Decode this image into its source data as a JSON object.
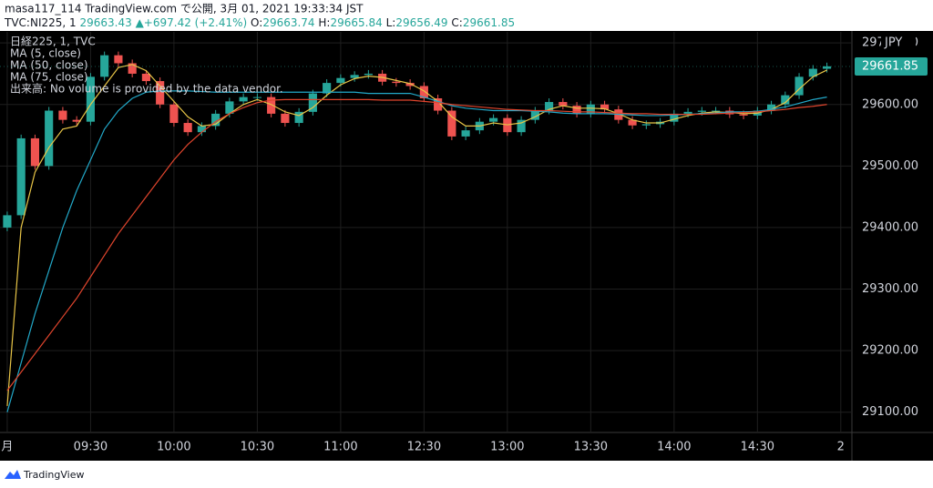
{
  "header": {
    "line1": "masa117_114 TradingView.com で公開, 3月 01, 2021 19:33:34 JST",
    "symbol": "TVC:NI225, 1",
    "price": "29663.43",
    "change": "▲+697.42 (+2.41%)",
    "o_label": "O:",
    "o": "29663.74",
    "h_label": "H:",
    "h": "29665.84",
    "l_label": "L:",
    "l": "29656.49",
    "c_label": "C:",
    "c": "29661.85"
  },
  "legend_header": "日経225, 1, TVC",
  "volume_note": "出来高: No volume is provided by the data vendor.",
  "currency": "JPY",
  "footer": "TradingView",
  "chart_data": {
    "type": "candlestick",
    "up_color": "#26a69a",
    "down_color": "#ef5350",
    "grid": true,
    "xlim": [
      -2.6,
      304
    ],
    "ylim": [
      29067,
      29718
    ],
    "xticks": [
      {
        "value": 0,
        "label": "月"
      },
      {
        "value": 30,
        "label": "09:30"
      },
      {
        "value": 60,
        "label": "10:00"
      },
      {
        "value": 90,
        "label": "10:30"
      },
      {
        "value": 120,
        "label": "11:00"
      },
      {
        "value": 150,
        "label": "12:30"
      },
      {
        "value": 180,
        "label": "13:00"
      },
      {
        "value": 210,
        "label": "13:30"
      },
      {
        "value": 240,
        "label": "14:00"
      },
      {
        "value": 270,
        "label": "14:30"
      },
      {
        "value": 300,
        "label": "2"
      }
    ],
    "yticks": [
      {
        "value": 29100,
        "label": "29100.00"
      },
      {
        "value": 29200,
        "label": "29200.00"
      },
      {
        "value": 29300,
        "label": "29300.00"
      },
      {
        "value": 29400,
        "label": "29400.00"
      },
      {
        "value": 29500,
        "label": "29500.00"
      },
      {
        "value": 29600,
        "label": "29600.00"
      },
      {
        "value": 29700,
        "label": "29700.00"
      }
    ],
    "last_price": 29661.85,
    "x": [
      0,
      5,
      10,
      15,
      20,
      25,
      30,
      35,
      40,
      45,
      50,
      55,
      60,
      65,
      70,
      75,
      80,
      85,
      90,
      95,
      100,
      105,
      110,
      115,
      120,
      125,
      130,
      135,
      140,
      145,
      150,
      155,
      160,
      165,
      170,
      175,
      180,
      185,
      190,
      195,
      200,
      205,
      210,
      215,
      220,
      225,
      230,
      235,
      240,
      245,
      250,
      255,
      260,
      265,
      270,
      275,
      280,
      285,
      290,
      295
    ],
    "open": [
      29400,
      29420,
      29545,
      29500,
      29590,
      29575,
      29572,
      29645,
      29680,
      29667,
      29650,
      29638,
      29600,
      29570,
      29555,
      29565,
      29585,
      29605,
      29612,
      29612,
      29585,
      29570,
      29588,
      29618,
      29635,
      29643,
      29648,
      29650,
      29637,
      29635,
      29630,
      29610,
      29590,
      29548,
      29558,
      29572,
      29578,
      29555,
      29575,
      29590,
      29604,
      29598,
      29585,
      29600,
      29592,
      29575,
      29566,
      29568,
      29572,
      29585,
      29588,
      29590,
      29590,
      29584,
      29582,
      29590,
      29600,
      29615,
      29645,
      29658
    ],
    "high": [
      29426,
      29551,
      29551,
      29596,
      29596,
      29581,
      29651,
      29686,
      29686,
      29673,
      29656,
      29644,
      29606,
      29576,
      29571,
      29591,
      29611,
      29618,
      29618,
      29618,
      29591,
      29594,
      29624,
      29641,
      29649,
      29654,
      29656,
      29656,
      29643,
      29641,
      29636,
      29616,
      29596,
      29564,
      29578,
      29584,
      29584,
      29581,
      29596,
      29610,
      29610,
      29604,
      29606,
      29606,
      29598,
      29581,
      29574,
      29578,
      29591,
      29594,
      29596,
      29596,
      29596,
      29590,
      29596,
      29606,
      29621,
      29651,
      29664,
      29668
    ],
    "low": [
      29394,
      29414,
      29494,
      29494,
      29569,
      29566,
      29566,
      29639,
      29661,
      29644,
      29632,
      29594,
      29564,
      29549,
      29549,
      29559,
      29579,
      29599,
      29606,
      29579,
      29564,
      29564,
      29582,
      29612,
      29629,
      29637,
      29642,
      29631,
      29629,
      29624,
      29604,
      29584,
      29542,
      29542,
      29552,
      29566,
      29549,
      29549,
      29569,
      29584,
      29592,
      29579,
      29579,
      29586,
      29569,
      29560,
      29560,
      29562,
      29566,
      29579,
      29582,
      29584,
      29578,
      29576,
      29576,
      29584,
      29594,
      29609,
      29639,
      29652
    ],
    "close": [
      29420,
      29545,
      29500,
      29590,
      29575,
      29572,
      29645,
      29680,
      29667,
      29650,
      29638,
      29600,
      29570,
      29555,
      29565,
      29585,
      29605,
      29612,
      29612,
      29585,
      29570,
      29588,
      29618,
      29635,
      29643,
      29648,
      29650,
      29637,
      29635,
      29630,
      29610,
      29590,
      29548,
      29558,
      29572,
      29578,
      29555,
      29575,
      29590,
      29604,
      29598,
      29585,
      29600,
      29592,
      29575,
      29566,
      29568,
      29572,
      29585,
      29588,
      29590,
      29590,
      29584,
      29582,
      29590,
      29600,
      29615,
      29645,
      29658,
      29662
    ],
    "series": [
      {
        "name": "MA (5, close)",
        "color": "#e8c547",
        "values": [
          29110,
          29400,
          29490,
          29530,
          29560,
          29565,
          29600,
          29630,
          29660,
          29665,
          29655,
          29630,
          29605,
          29580,
          29565,
          29568,
          29585,
          29600,
          29608,
          29600,
          29588,
          29582,
          29595,
          29615,
          29632,
          29642,
          29646,
          29644,
          29639,
          29634,
          29622,
          29605,
          29580,
          29565,
          29565,
          29570,
          29567,
          29570,
          29580,
          29592,
          29598,
          29594,
          29594,
          29593,
          29585,
          29575,
          29570,
          29570,
          29576,
          29582,
          29586,
          29588,
          29587,
          29585,
          29586,
          29592,
          29603,
          29625,
          29645,
          29656
        ]
      },
      {
        "name": "MA (50, close)",
        "color": "#22a8c8",
        "values": [
          29100,
          29180,
          29260,
          29330,
          29400,
          29460,
          29510,
          29560,
          29590,
          29610,
          29620,
          29622,
          29622,
          29622,
          29621,
          29620,
          29620,
          29620,
          29620,
          29620,
          29620,
          29620,
          29620,
          29620,
          29620,
          29620,
          29618,
          29618,
          29618,
          29618,
          29612,
          29605,
          29598,
          29594,
          29592,
          29590,
          29590,
          29590,
          29589,
          29588,
          29586,
          29585,
          29585,
          29585,
          29584,
          29583,
          29582,
          29582,
          29583,
          29584,
          29585,
          29586,
          29588,
          29588,
          29589,
          29592,
          29596,
          29602,
          29608,
          29612
        ]
      },
      {
        "name": "MA (75, close)",
        "color": "#e0452d",
        "values": [
          29135,
          29165,
          29195,
          29225,
          29255,
          29285,
          29320,
          29355,
          29390,
          29420,
          29450,
          29480,
          29510,
          29535,
          29555,
          29572,
          29585,
          29595,
          29603,
          29607,
          29608,
          29608,
          29608,
          29608,
          29608,
          29608,
          29608,
          29607,
          29607,
          29607,
          29605,
          29603,
          29600,
          29598,
          29596,
          29594,
          29592,
          29591,
          29590,
          29590,
          29589,
          29588,
          29588,
          29587,
          29586,
          29585,
          29585,
          29584,
          29584,
          29584,
          29584,
          29585,
          29586,
          29587,
          29588,
          29590,
          29592,
          29595,
          29597,
          29600
        ]
      }
    ]
  }
}
